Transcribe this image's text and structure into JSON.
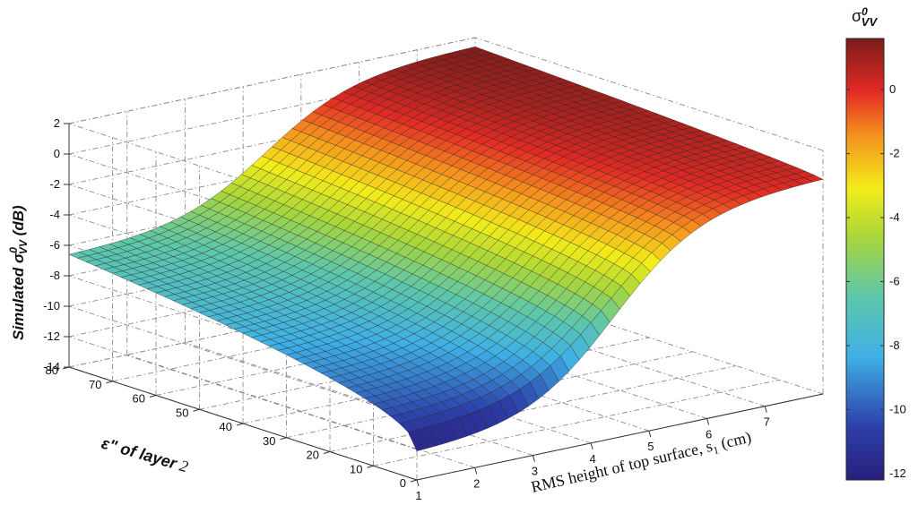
{
  "chart_data": {
    "type": "surface",
    "zlabel_prefix": "Simulated σ",
    "zlabel_sup": "0",
    "zlabel_sub": "VV",
    "zlabel_suffix": " (dB)",
    "ylabel_prefix": "ε\" of  layer",
    "ylabel_suffix": " 2",
    "xlabel_prefix": "RMS height of top surface, s",
    "xlabel_sub": "1",
    "xlabel_suffix": " (cm)",
    "colorbar_title_base": "σ",
    "colorbar_title_sup": "0",
    "colorbar_title_sub": "VV",
    "x_ticks": [
      "1",
      "2",
      "3",
      "4",
      "5",
      "6",
      "7"
    ],
    "y_ticks": [
      "0",
      "10",
      "20",
      "30",
      "40",
      "50",
      "60",
      "70",
      "80"
    ],
    "z_ticks": [
      "-14",
      "-12",
      "-10",
      "-8",
      "-6",
      "-4",
      "-2",
      "0",
      "2"
    ],
    "colorbar_ticks": [
      "-12",
      "-10",
      "-8",
      "-6",
      "-4",
      "-2",
      "0"
    ],
    "x_range": [
      1,
      8
    ],
    "y_range": [
      0,
      80
    ],
    "z_range": [
      -14,
      2
    ],
    "colorbar_range": [
      -12.2,
      1.6
    ],
    "corner_values": [
      {
        "x": 1,
        "y": 0,
        "z": -12.1
      },
      {
        "x": 1,
        "y": 80,
        "z": -6.6
      },
      {
        "x": 8,
        "y": 80,
        "z": 1.4
      },
      {
        "x": 8,
        "y": 0,
        "z": 0.1
      }
    ],
    "colormap": "jet",
    "grid": true
  }
}
